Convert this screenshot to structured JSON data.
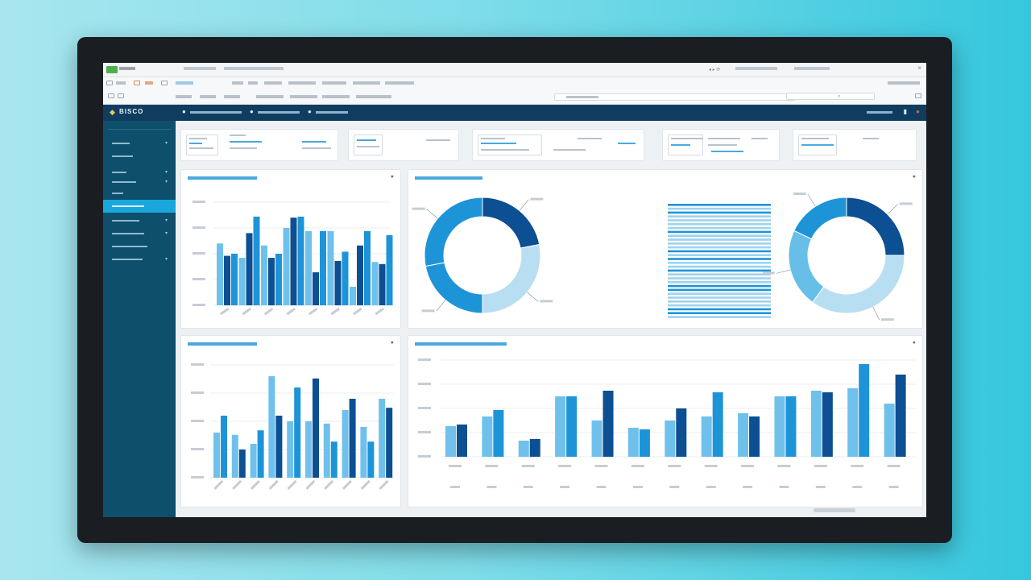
{
  "header": {
    "logo_text": "BISCO"
  },
  "colors": {
    "light": "#6fc1ec",
    "mid": "#1e94d8",
    "dark": "#0c4f93",
    "pale": "#b8def2",
    "sidebar": "#0e4f6c",
    "header": "#103d5f"
  },
  "icons": [
    "home-icon",
    "bell-icon",
    "user-icon",
    "settings-icon",
    "gear-icon",
    "chevron-down-icon"
  ],
  "charts": {
    "bars1": {
      "series": [
        {
          "name": "",
          "color": "#6fc1ec",
          "values": [
            60,
            46,
            58,
            75,
            72,
            72,
            18,
            42
          ]
        },
        {
          "name": "",
          "color": "#0c4f93",
          "values": [
            48,
            70,
            46,
            85,
            32,
            43,
            58,
            40
          ]
        },
        {
          "name": "",
          "color": "#1e94d8",
          "values": [
            50,
            86,
            50,
            86,
            72,
            52,
            72,
            68
          ]
        }
      ]
    },
    "donut1": {
      "values": [
        22,
        28,
        22,
        28
      ]
    },
    "donut2": {
      "values": [
        25,
        35,
        22,
        18
      ]
    },
    "bars2": {
      "values": [
        [
          40,
          55
        ],
        [
          38,
          25
        ],
        [
          30,
          42
        ],
        [
          90,
          55
        ],
        [
          50,
          80
        ],
        [
          50,
          88
        ],
        [
          48,
          32
        ],
        [
          60,
          70
        ],
        [
          45,
          32
        ],
        [
          70,
          62
        ]
      ]
    },
    "bars3": {
      "values": [
        [
          38,
          40
        ],
        [
          50,
          58
        ],
        [
          20,
          22
        ],
        [
          75,
          75
        ],
        [
          45,
          82
        ],
        [
          36,
          34
        ],
        [
          45,
          60
        ],
        [
          50,
          80
        ],
        [
          54,
          50
        ],
        [
          75,
          75
        ],
        [
          82,
          80
        ],
        [
          85,
          115
        ],
        [
          66,
          102
        ]
      ]
    }
  }
}
